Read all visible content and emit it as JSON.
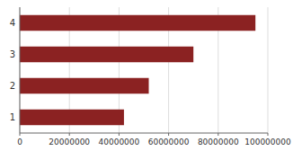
{
  "chart_data": {
    "type": "bar",
    "orientation": "horizontal",
    "categories": [
      "1",
      "2",
      "3",
      "4"
    ],
    "values": [
      42000000,
      52000000,
      70000000,
      95000000
    ],
    "color": "#8B2222",
    "xlim": [
      0,
      100000000
    ],
    "xticks": [
      0,
      20000000,
      40000000,
      60000000,
      80000000,
      100000000
    ],
    "grid": true
  }
}
